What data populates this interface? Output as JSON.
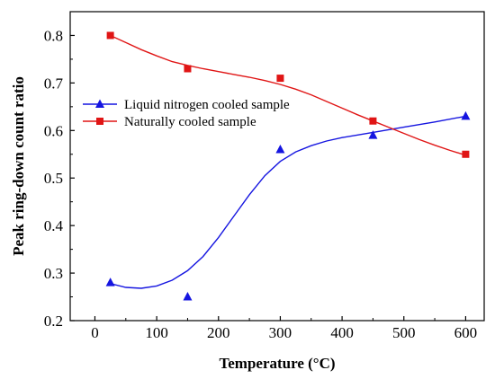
{
  "chart_data": {
    "type": "scatter",
    "xlabel": "Temperature (°C)",
    "ylabel": "Peak ring-down count ratio",
    "xlim": [
      -40,
      630
    ],
    "ylim": [
      0.2,
      0.85
    ],
    "xticks": [
      "0",
      "100",
      "200",
      "300",
      "400",
      "500",
      "600"
    ],
    "xtick_values": [
      0,
      100,
      200,
      300,
      400,
      500,
      600
    ],
    "yticks": [
      "0.2",
      "0.3",
      "0.4",
      "0.5",
      "0.6",
      "0.7",
      "0.8"
    ],
    "ytick_values": [
      0.2,
      0.3,
      0.4,
      0.5,
      0.6,
      0.7,
      0.8
    ],
    "grid": false,
    "legend_position": "upper-left",
    "series": [
      {
        "name": "Liquid nitrogen cooled sample",
        "marker": "triangle",
        "color": "#1515e0",
        "x": [
          25,
          150,
          300,
          450,
          600
        ],
        "y": [
          0.28,
          0.25,
          0.56,
          0.59,
          0.63
        ],
        "fit_curve": [
          [
            25,
            0.278
          ],
          [
            50,
            0.27
          ],
          [
            75,
            0.268
          ],
          [
            100,
            0.273
          ],
          [
            125,
            0.285
          ],
          [
            150,
            0.305
          ],
          [
            175,
            0.335
          ],
          [
            200,
            0.375
          ],
          [
            225,
            0.42
          ],
          [
            250,
            0.465
          ],
          [
            275,
            0.505
          ],
          [
            300,
            0.535
          ],
          [
            325,
            0.555
          ],
          [
            350,
            0.568
          ],
          [
            375,
            0.578
          ],
          [
            400,
            0.585
          ],
          [
            450,
            0.596
          ],
          [
            500,
            0.607
          ],
          [
            550,
            0.618
          ],
          [
            600,
            0.63
          ]
        ]
      },
      {
        "name": "Naturally cooled sample",
        "marker": "square",
        "color": "#e01515",
        "x": [
          25,
          150,
          300,
          450,
          600
        ],
        "y": [
          0.8,
          0.73,
          0.71,
          0.62,
          0.55
        ],
        "fit_curve": [
          [
            25,
            0.8
          ],
          [
            50,
            0.785
          ],
          [
            75,
            0.77
          ],
          [
            100,
            0.757
          ],
          [
            125,
            0.745
          ],
          [
            150,
            0.737
          ],
          [
            175,
            0.73
          ],
          [
            200,
            0.724
          ],
          [
            225,
            0.718
          ],
          [
            250,
            0.712
          ],
          [
            275,
            0.705
          ],
          [
            300,
            0.697
          ],
          [
            325,
            0.687
          ],
          [
            350,
            0.675
          ],
          [
            375,
            0.661
          ],
          [
            400,
            0.647
          ],
          [
            425,
            0.633
          ],
          [
            450,
            0.62
          ],
          [
            475,
            0.607
          ],
          [
            500,
            0.594
          ],
          [
            525,
            0.581
          ],
          [
            550,
            0.569
          ],
          [
            575,
            0.558
          ],
          [
            600,
            0.548
          ]
        ]
      }
    ]
  }
}
